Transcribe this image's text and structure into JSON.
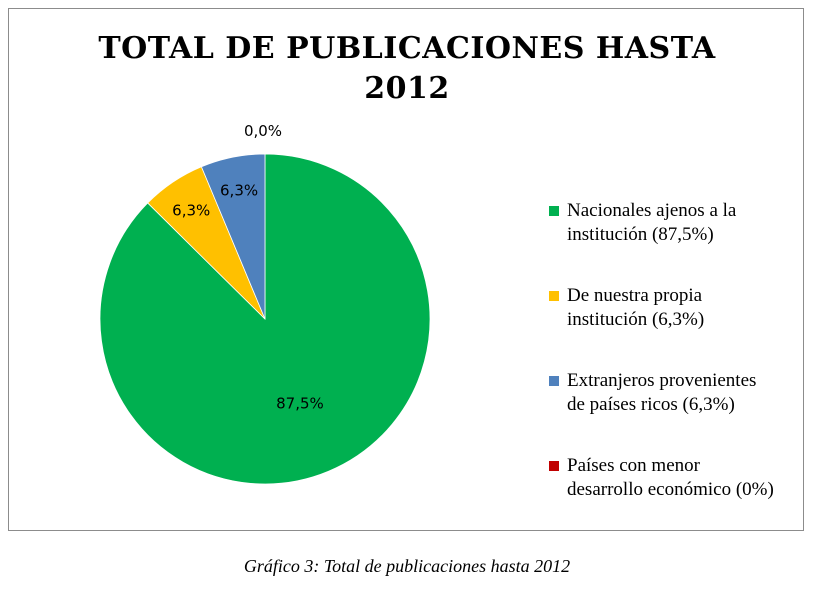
{
  "chart_data": {
    "type": "pie",
    "title_lines": [
      "TOTAL DE PUBLICACIONES HASTA",
      "2012"
    ],
    "slices": [
      {
        "legend_lines": [
          "Nacionales ajenos a la",
          "institución (87,5%)"
        ],
        "value": 87.5,
        "label": "87,5%",
        "color": "#00b050"
      },
      {
        "legend_lines": [
          "De nuestra propia",
          "institución (6,3%)"
        ],
        "value": 6.3,
        "label": "6,3%",
        "color": "#ffc000"
      },
      {
        "legend_lines": [
          "Extranjeros provenientes",
          "de países ricos (6,3%)"
        ],
        "value": 6.3,
        "label": "6,3%",
        "color": "#4f81bd"
      },
      {
        "legend_lines": [
          "Países con menor",
          "desarrollo económico (0%)"
        ],
        "value": 0.0,
        "label": "0,0%",
        "color": "#c00000"
      }
    ],
    "legend_position": "right"
  },
  "caption": "Gráfico 3: Total de publicaciones hasta 2012"
}
